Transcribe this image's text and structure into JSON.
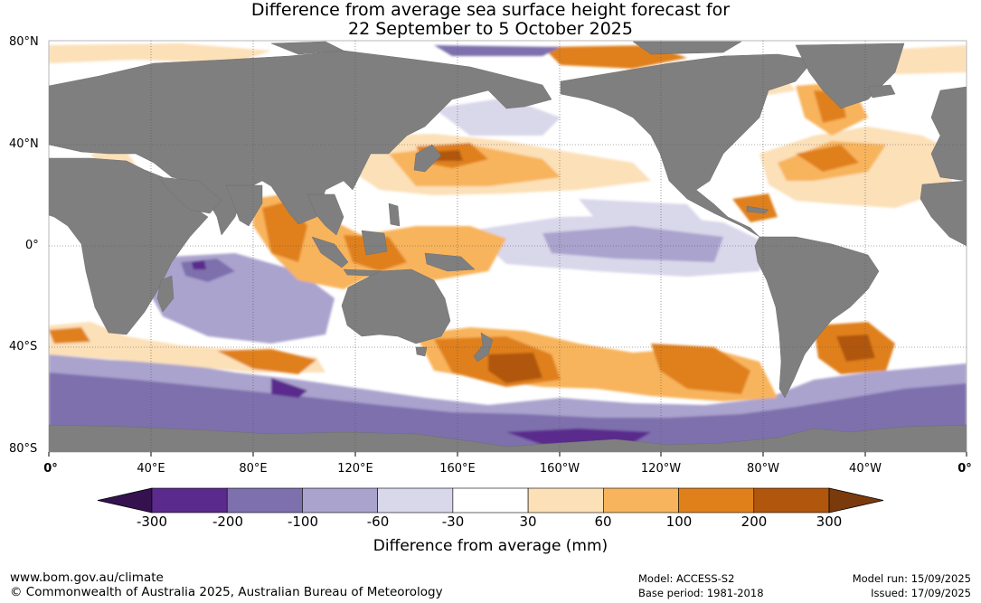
{
  "title_line1": "Difference from average sea surface height forecast for",
  "title_line2": "22 September to 5 October 2025",
  "lat_labels": [
    "80°N",
    "40°N",
    "0°",
    "40°S",
    "80°S"
  ],
  "lon_labels": [
    "0°",
    "40°E",
    "80°E",
    "120°E",
    "160°E",
    "160°W",
    "120°W",
    "80°W",
    "40°W",
    "0°"
  ],
  "colorbar": {
    "title": "Difference from average (mm)",
    "ticks": [
      "-300",
      "-200",
      "-100",
      "-60",
      "-30",
      "30",
      "60",
      "100",
      "200",
      "300"
    ],
    "colors": [
      "#35124f",
      "#5a2a8c",
      "#7e6fad",
      "#aaa3cd",
      "#d9d7ea",
      "#ffffff",
      "#fce0b8",
      "#f8b45c",
      "#e0801a",
      "#b0560d",
      "#7b3a0c"
    ]
  },
  "colors": {
    "land": "#7f7f7f",
    "ocean_neutral": "#ffffff"
  },
  "footer": {
    "url": "www.bom.gov.au/climate",
    "copyright": "© Commonwealth of Australia 2025, Australian Bureau of Meteorology",
    "model": "Model: ACCESS-S2",
    "base_period": "Base period: 1981-2018",
    "model_run": "Model run: 15/09/2025",
    "issued": "Issued: 17/09/2025"
  }
}
